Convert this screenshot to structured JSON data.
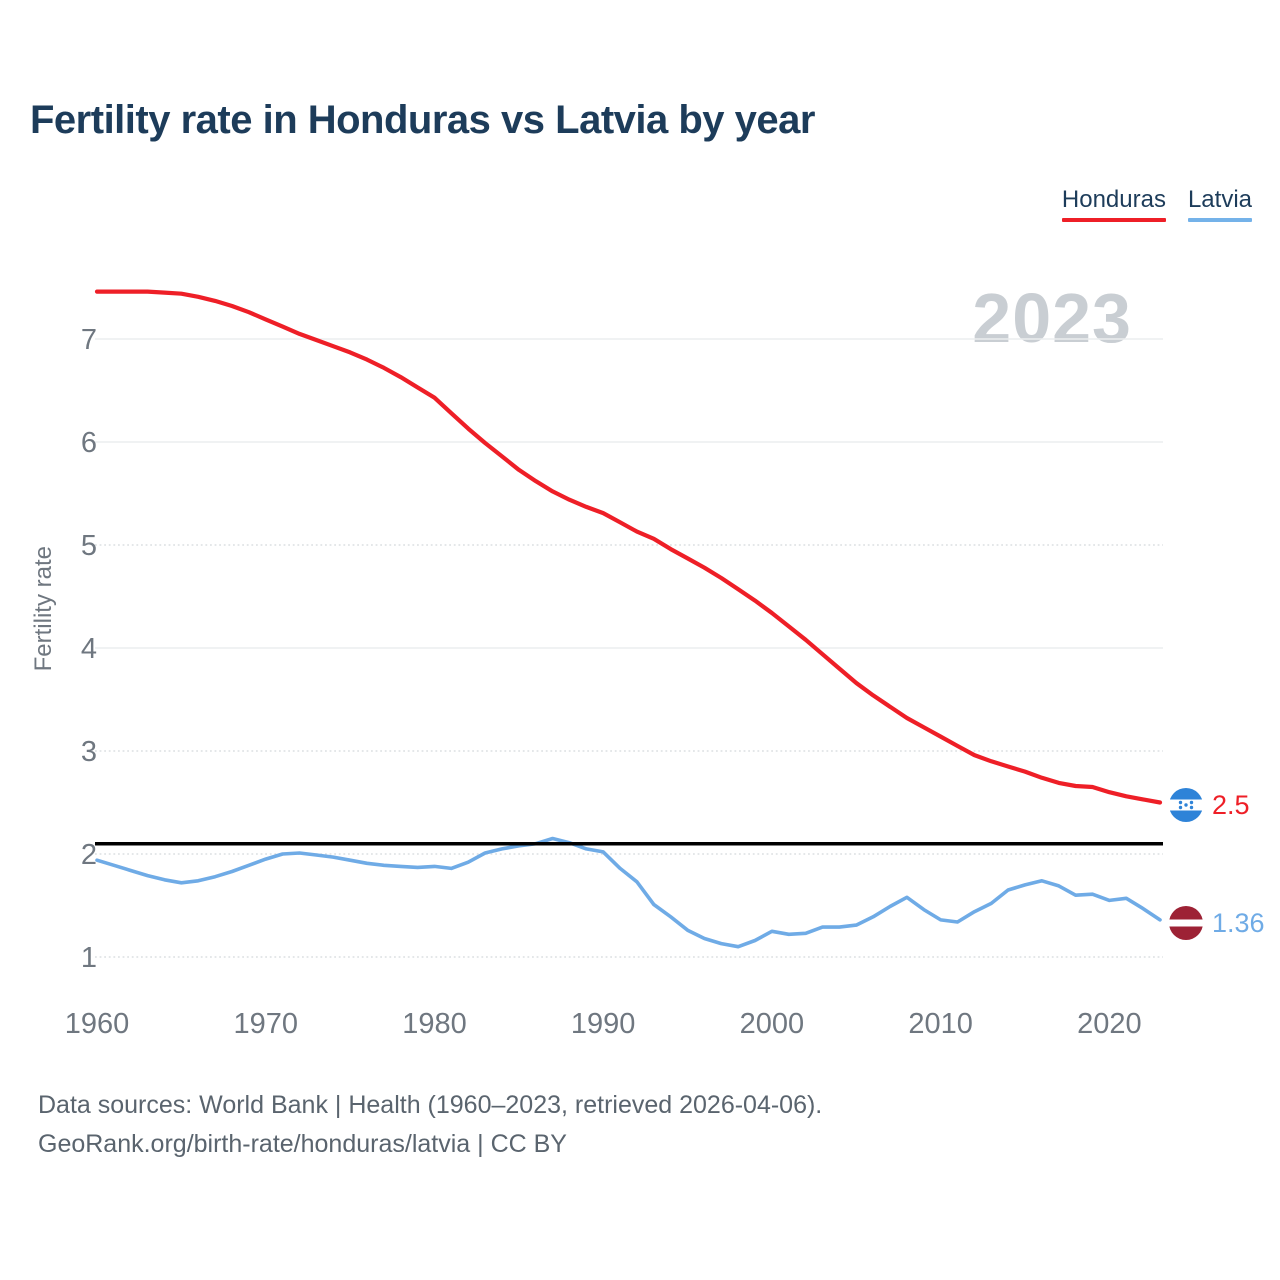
{
  "header": {
    "title": "Fertility rate in Honduras vs Latvia by year"
  },
  "legend": {
    "items": [
      {
        "label": "Honduras",
        "color": "#ee1f27"
      },
      {
        "label": "Latvia",
        "color": "#74b2e9"
      }
    ]
  },
  "watermark": "2023",
  "end_labels": [
    {
      "series": "Honduras",
      "value": "2.5",
      "color": "#ee1f27",
      "flag": "honduras-flag"
    },
    {
      "series": "Latvia",
      "value": "1.36",
      "color": "#6fabe6",
      "flag": "latvia-flag"
    }
  ],
  "footer": {
    "line1": "Data sources: World Bank | Health (1960–2023, retrieved 2026-04-06).",
    "line2": "GeoRank.org/birth-rate/honduras/latvia | CC BY"
  },
  "chart_data": {
    "type": "line",
    "title": "Fertility rate in Honduras vs Latvia by year",
    "xlabel": "",
    "ylabel": "Fertility rate",
    "xlim": [
      1960,
      2023
    ],
    "ylim": [
      0.7,
      7.8
    ],
    "grid": true,
    "legend_position": "top-right",
    "xticks": [
      1960,
      1970,
      1980,
      1990,
      2000,
      2010,
      2020
    ],
    "yticks": [
      {
        "value": 7,
        "dotted": false
      },
      {
        "value": 6,
        "dotted": false
      },
      {
        "value": 5,
        "dotted": true
      },
      {
        "value": 4,
        "dotted": false
      },
      {
        "value": 3,
        "dotted": true
      },
      {
        "value": 2,
        "dotted": true
      },
      {
        "value": 1,
        "dotted": true
      }
    ],
    "reference_line": {
      "value": 2.1,
      "color": "#000000"
    },
    "x": [
      1960,
      1961,
      1962,
      1963,
      1964,
      1965,
      1966,
      1967,
      1968,
      1969,
      1970,
      1971,
      1972,
      1973,
      1974,
      1975,
      1976,
      1977,
      1978,
      1979,
      1980,
      1981,
      1982,
      1983,
      1984,
      1985,
      1986,
      1987,
      1988,
      1989,
      1990,
      1991,
      1992,
      1993,
      1994,
      1995,
      1996,
      1997,
      1998,
      1999,
      2000,
      2001,
      2002,
      2003,
      2004,
      2005,
      2006,
      2007,
      2008,
      2009,
      2010,
      2011,
      2012,
      2013,
      2014,
      2015,
      2016,
      2017,
      2018,
      2019,
      2020,
      2021,
      2022,
      2023
    ],
    "series": [
      {
        "name": "Honduras",
        "color": "#ee1f27",
        "end_value": 2.5,
        "values": [
          7.46,
          7.46,
          7.46,
          7.46,
          7.45,
          7.44,
          7.41,
          7.37,
          7.32,
          7.26,
          7.19,
          7.12,
          7.05,
          6.99,
          6.93,
          6.87,
          6.8,
          6.72,
          6.63,
          6.53,
          6.43,
          6.28,
          6.13,
          5.99,
          5.86,
          5.73,
          5.62,
          5.52,
          5.44,
          5.37,
          5.31,
          5.22,
          5.13,
          5.06,
          4.96,
          4.87,
          4.78,
          4.68,
          4.57,
          4.46,
          4.34,
          4.21,
          4.08,
          3.94,
          3.8,
          3.66,
          3.54,
          3.43,
          3.32,
          3.23,
          3.14,
          3.05,
          2.96,
          2.9,
          2.85,
          2.8,
          2.74,
          2.69,
          2.66,
          2.65,
          2.6,
          2.56,
          2.53,
          2.5
        ]
      },
      {
        "name": "Latvia",
        "color": "#6fabe6",
        "end_value": 1.36,
        "values": [
          1.94,
          1.89,
          1.84,
          1.79,
          1.75,
          1.72,
          1.74,
          1.78,
          1.83,
          1.89,
          1.95,
          2.0,
          2.01,
          1.99,
          1.97,
          1.94,
          1.91,
          1.89,
          1.88,
          1.87,
          1.88,
          1.86,
          1.92,
          2.01,
          2.05,
          2.08,
          2.1,
          2.15,
          2.11,
          2.05,
          2.02,
          1.86,
          1.73,
          1.51,
          1.39,
          1.26,
          1.18,
          1.13,
          1.1,
          1.16,
          1.25,
          1.22,
          1.23,
          1.29,
          1.29,
          1.31,
          1.39,
          1.49,
          1.58,
          1.46,
          1.36,
          1.34,
          1.44,
          1.52,
          1.65,
          1.7,
          1.74,
          1.69,
          1.6,
          1.61,
          1.55,
          1.57,
          1.47,
          1.36
        ]
      }
    ]
  }
}
